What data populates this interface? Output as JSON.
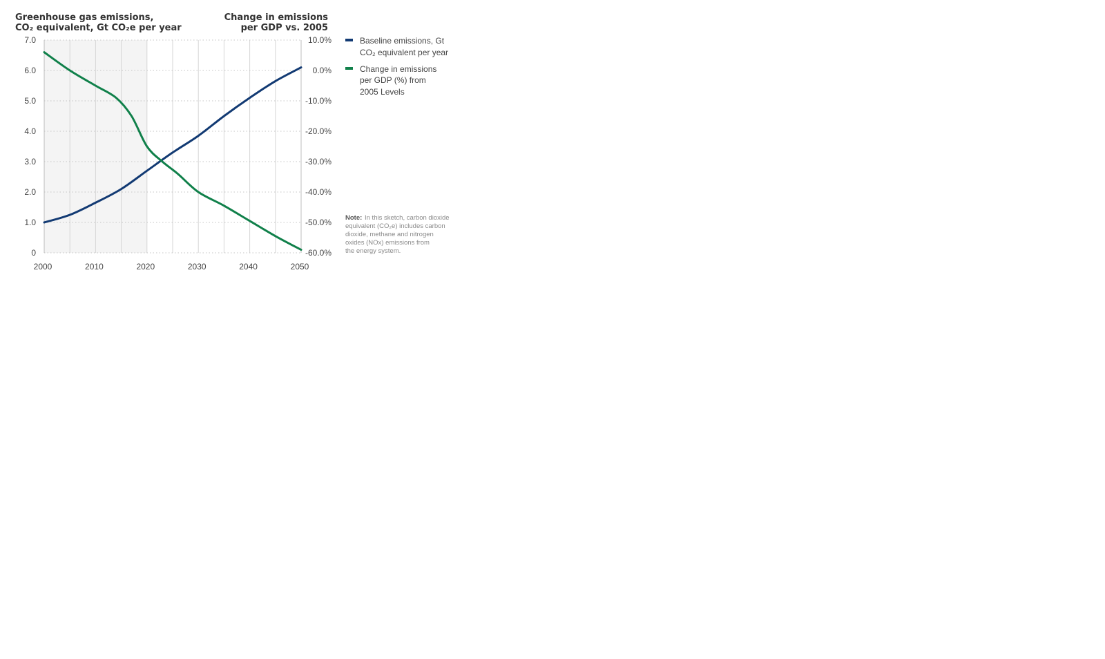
{
  "chart_data": {
    "type": "line",
    "left_title": {
      "line1": "Greenhouse gas emissions,",
      "line2": "CO₂ equivalent, Gt CO₂e per year"
    },
    "right_title": {
      "line1": "Change in emissions",
      "line2": "per GDP vs. 2005"
    },
    "x_ticks": [
      "2000",
      "2010",
      "2020",
      "2030",
      "2040",
      "2050"
    ],
    "xlim": [
      2000,
      2050
    ],
    "y_left_ticks": [
      "0",
      "1.0",
      "2.0",
      "3.0",
      "4.0",
      "5.0",
      "6.0",
      "7.0"
    ],
    "ylim_left": [
      0,
      7
    ],
    "y_right_ticks": [
      "-60.0%",
      "-50.0%",
      "-40.0%",
      "-30.0%",
      "-20.0%",
      "-10.0%",
      "0.0%",
      "10.0%"
    ],
    "ylim_right": [
      -60,
      10
    ],
    "historical_shading": [
      2000,
      2020
    ],
    "grid": "horizontal dotted, vertical every 5 years",
    "series": [
      {
        "name": "Baseline emissions, Gt CO₂ equivalent per year",
        "axis": "left",
        "color": "#123a73",
        "x": [
          2000,
          2005,
          2010,
          2015,
          2020,
          2025,
          2030,
          2035,
          2040,
          2045,
          2050
        ],
        "values": [
          1.0,
          1.25,
          1.65,
          2.1,
          2.7,
          3.3,
          3.85,
          4.5,
          5.1,
          5.65,
          6.1
        ]
      },
      {
        "name": "Change in emissions per GDP (%) from 2005 Levels",
        "axis": "right",
        "color": "#10804a",
        "x": [
          2000,
          2005,
          2010,
          2014,
          2017,
          2020,
          2023,
          2026,
          2030,
          2035,
          2040,
          2045,
          2050
        ],
        "values": [
          6.0,
          0.0,
          -5.0,
          -9.0,
          -15.0,
          -25.0,
          -30.0,
          -34.0,
          -40.0,
          -44.5,
          -49.5,
          -54.5,
          -59.0
        ]
      }
    ],
    "legend_position": "right",
    "legend": [
      {
        "line1": "Baseline emissions, Gt",
        "line2": "CO₂ equivalent per year"
      },
      {
        "line1": "Change in emissions",
        "line2": "per GDP (%) from",
        "line3": "2005 Levels"
      }
    ],
    "note": {
      "label": "Note:",
      "lines": [
        "In this sketch, carbon dioxide",
        "equivalent (CO₂e) includes carbon",
        "dioxide, methane and nitrogen",
        "oxides (NOx) emissions from",
        "the energy system."
      ]
    }
  }
}
